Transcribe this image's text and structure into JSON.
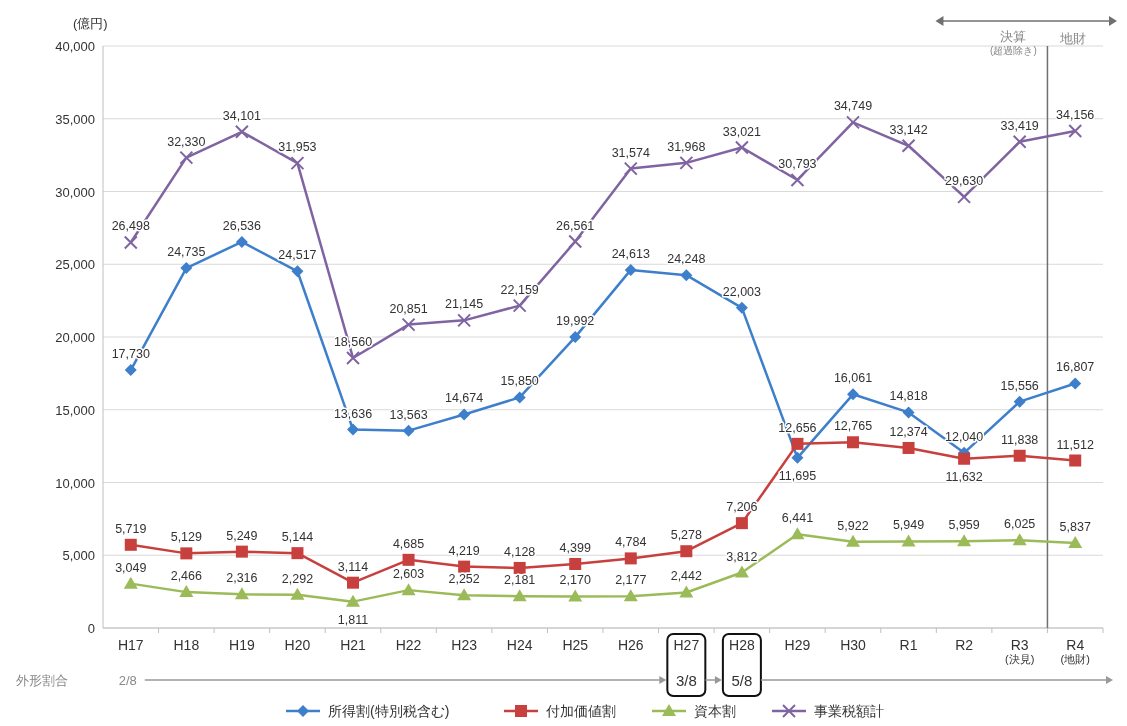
{
  "chart_data": {
    "type": "line",
    "ylabel": "(億円)",
    "categories": [
      "H17",
      "H18",
      "H19",
      "H20",
      "H21",
      "H22",
      "H23",
      "H24",
      "H25",
      "H26",
      "H27",
      "H28",
      "H29",
      "H30",
      "R1",
      "R2",
      "R3\n(決見)",
      "R4\n(地財)"
    ],
    "series": [
      {
        "name": "所得割(特別税含む)",
        "color": "#3e7fcc",
        "marker": "diamond",
        "values": [
          17730,
          24735,
          26536,
          24517,
          13636,
          13563,
          14674,
          15850,
          19992,
          24613,
          24248,
          22003,
          11695,
          16061,
          14818,
          12040,
          15556,
          16807
        ],
        "value_labels": [
          "17,730",
          "24,735",
          "26,536",
          "24,517",
          "13,636",
          "13,563",
          "14,674",
          "15,850",
          "19,992",
          "24,613",
          "24,248",
          "22,003",
          "11,695",
          "16,061",
          "14,818",
          "12,040",
          "15,556",
          "16,807"
        ]
      },
      {
        "name": "付加価値割",
        "color": "#c8403d",
        "marker": "square",
        "values": [
          5719,
          5129,
          5249,
          5144,
          3114,
          4685,
          4219,
          4128,
          4399,
          4784,
          5278,
          7206,
          12656,
          12765,
          12374,
          11632,
          11838,
          11512
        ],
        "value_labels": [
          "5,719",
          "5,129",
          "5,249",
          "5,144",
          "3,114",
          "4,685",
          "4,219",
          "4,128",
          "4,399",
          "4,784",
          "5,278",
          "7,206",
          "12,656",
          "12,765",
          "12,374",
          "11,632",
          "11,838",
          "11,512"
        ]
      },
      {
        "name": "資本割",
        "color": "#9bbb59",
        "marker": "triangle",
        "values": [
          3049,
          2466,
          2316,
          2292,
          1811,
          2603,
          2252,
          2181,
          2170,
          2177,
          2442,
          3812,
          6441,
          5922,
          5949,
          5959,
          6025,
          5837
        ],
        "value_labels": [
          "3,049",
          "2,466",
          "2,316",
          "2,292",
          "1,811",
          "2,603",
          "2,252",
          "2,181",
          "2,170",
          "2,177",
          "2,442",
          "3,812",
          "6,441",
          "5,922",
          "5,949",
          "5,959",
          "6,025",
          "5,837"
        ]
      },
      {
        "name": "事業税額計",
        "color": "#8064a2",
        "marker": "cross",
        "values": [
          26498,
          32330,
          34101,
          31953,
          18560,
          20851,
          21145,
          22159,
          26561,
          31574,
          31968,
          33021,
          30793,
          34749,
          33142,
          29630,
          33419,
          34156
        ],
        "value_labels": [
          "26,498",
          "32,330",
          "34,101",
          "31,953",
          "18,560",
          "20,851",
          "21,145",
          "22,159",
          "26,561",
          "31,574",
          "31,968",
          "33,021",
          "30,793",
          "34,749",
          "33,142",
          "29,630",
          "33,419",
          "34,156"
        ]
      }
    ],
    "ylim": [
      0,
      40000
    ],
    "yticks": [
      0,
      {
        "value": 5000,
        "label": "5,000"
      },
      {
        "value": 10000,
        "label": "10,000"
      },
      {
        "value": 15000,
        "label": "15,000"
      },
      {
        "value": 20000,
        "label": "20,000"
      },
      {
        "value": 25000,
        "label": "25,000"
      },
      {
        "value": 30000,
        "label": "30,000"
      },
      {
        "value": 35000,
        "label": "35,000"
      },
      {
        "value": 40000,
        "label": "40,000"
      }
    ],
    "grid": "y",
    "legend": "bottom",
    "ref_lines": [
      {
        "axis": "x",
        "value": "R4\n(地財)",
        "label": null,
        "color": "#707070"
      }
    ],
    "annotations": [
      "決算",
      "(超過除き)",
      "地財",
      "外形割合",
      "2/8",
      "3/8",
      "5/8"
    ]
  }
}
